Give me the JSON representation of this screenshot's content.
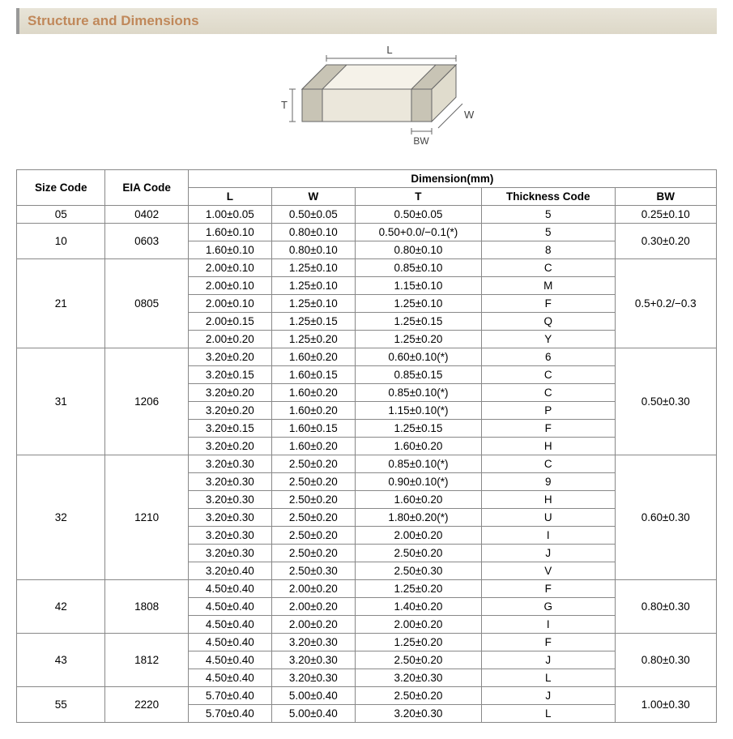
{
  "header": {
    "title": "Structure and Dimensions"
  },
  "diagram": {
    "labels": {
      "L": "L",
      "W": "W",
      "T": "T",
      "BW": "BW"
    },
    "stroke": "#666666",
    "fill_top": "#f5f2e9",
    "fill_side": "#e0dccd",
    "fill_front": "#ebe7db",
    "fill_band": "#c8c4b5"
  },
  "table": {
    "header": {
      "size_code": "Size Code",
      "eia_code": "EIA Code",
      "dimension": "Dimension(mm)",
      "L": "L",
      "W": "W",
      "T": "T",
      "thickness_code": "Thickness Code",
      "BW": "BW"
    },
    "groups": [
      {
        "size": "05",
        "eia": "0402",
        "bw": "0.25±0.10",
        "rows": [
          {
            "L": "1.00±0.05",
            "W": "0.50±0.05",
            "T": "0.50±0.05",
            "tc": "5"
          }
        ]
      },
      {
        "size": "10",
        "eia": "0603",
        "bw": "0.30±0.20",
        "rows": [
          {
            "L": "1.60±0.10",
            "W": "0.80±0.10",
            "T": "0.50+0.0/−0.1(*)",
            "tc": "5"
          },
          {
            "L": "1.60±0.10",
            "W": "0.80±0.10",
            "T": "0.80±0.10",
            "tc": "8"
          }
        ]
      },
      {
        "size": "21",
        "eia": "0805",
        "bw": "0.5+0.2/−0.3",
        "rows": [
          {
            "L": "2.00±0.10",
            "W": "1.25±0.10",
            "T": "0.85±0.10",
            "tc": "C"
          },
          {
            "L": "2.00±0.10",
            "W": "1.25±0.10",
            "T": "1.15±0.10",
            "tc": "M"
          },
          {
            "L": "2.00±0.10",
            "W": "1.25±0.10",
            "T": "1.25±0.10",
            "tc": "F"
          },
          {
            "L": "2.00±0.15",
            "W": "1.25±0.15",
            "T": "1.25±0.15",
            "tc": "Q"
          },
          {
            "L": "2.00±0.20",
            "W": "1.25±0.20",
            "T": "1.25±0.20",
            "tc": "Y"
          }
        ]
      },
      {
        "size": "31",
        "eia": "1206",
        "bw": "0.50±0.30",
        "rows": [
          {
            "L": "3.20±0.20",
            "W": "1.60±0.20",
            "T": "0.60±0.10(*)",
            "tc": "6"
          },
          {
            "L": "3.20±0.15",
            "W": "1.60±0.15",
            "T": "0.85±0.15",
            "tc": "C"
          },
          {
            "L": "3.20±0.20",
            "W": "1.60±0.20",
            "T": "0.85±0.10(*)",
            "tc": "C"
          },
          {
            "L": "3.20±0.20",
            "W": "1.60±0.20",
            "T": "1.15±0.10(*)",
            "tc": "P"
          },
          {
            "L": "3.20±0.15",
            "W": "1.60±0.15",
            "T": "1.25±0.15",
            "tc": "F"
          },
          {
            "L": "3.20±0.20",
            "W": "1.60±0.20",
            "T": "1.60±0.20",
            "tc": "H"
          }
        ]
      },
      {
        "size": "32",
        "eia": "1210",
        "bw": "0.60±0.30",
        "rows": [
          {
            "L": "3.20±0.30",
            "W": "2.50±0.20",
            "T": "0.85±0.10(*)",
            "tc": "C"
          },
          {
            "L": "3.20±0.30",
            "W": "2.50±0.20",
            "T": "0.90±0.10(*)",
            "tc": "9"
          },
          {
            "L": "3.20±0.30",
            "W": "2.50±0.20",
            "T": "1.60±0.20",
            "tc": "H"
          },
          {
            "L": "3.20±0.30",
            "W": "2.50±0.20",
            "T": "1.80±0.20(*)",
            "tc": "U"
          },
          {
            "L": "3.20±0.30",
            "W": "2.50±0.20",
            "T": "2.00±0.20",
            "tc": "I"
          },
          {
            "L": "3.20±0.30",
            "W": "2.50±0.20",
            "T": "2.50±0.20",
            "tc": "J"
          },
          {
            "L": "3.20±0.40",
            "W": "2.50±0.30",
            "T": "2.50±0.30",
            "tc": "V"
          }
        ]
      },
      {
        "size": "42",
        "eia": "1808",
        "bw": "0.80±0.30",
        "rows": [
          {
            "L": "4.50±0.40",
            "W": "2.00±0.20",
            "T": "1.25±0.20",
            "tc": "F"
          },
          {
            "L": "4.50±0.40",
            "W": "2.00±0.20",
            "T": "1.40±0.20",
            "tc": "G"
          },
          {
            "L": "4.50±0.40",
            "W": "2.00±0.20",
            "T": "2.00±0.20",
            "tc": "I"
          }
        ]
      },
      {
        "size": "43",
        "eia": "1812",
        "bw": "0.80±0.30",
        "rows": [
          {
            "L": "4.50±0.40",
            "W": "3.20±0.30",
            "T": "1.25±0.20",
            "tc": "F"
          },
          {
            "L": "4.50±0.40",
            "W": "3.20±0.30",
            "T": "2.50±0.20",
            "tc": "J"
          },
          {
            "L": "4.50±0.40",
            "W": "3.20±0.30",
            "T": "3.20±0.30",
            "tc": "L"
          }
        ]
      },
      {
        "size": "55",
        "eia": "2220",
        "bw": "1.00±0.30",
        "rows": [
          {
            "L": "5.70±0.40",
            "W": "5.00±0.40",
            "T": "2.50±0.20",
            "tc": "J"
          },
          {
            "L": "5.70±0.40",
            "W": "5.00±0.40",
            "T": "3.20±0.30",
            "tc": "L"
          }
        ]
      }
    ]
  }
}
